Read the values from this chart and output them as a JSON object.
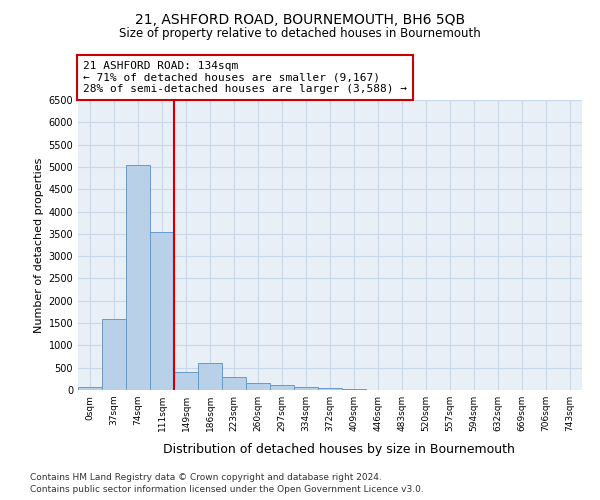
{
  "title1": "21, ASHFORD ROAD, BOURNEMOUTH, BH6 5QB",
  "title2": "Size of property relative to detached houses in Bournemouth",
  "xlabel": "Distribution of detached houses by size in Bournemouth",
  "ylabel": "Number of detached properties",
  "bins": [
    "0sqm",
    "37sqm",
    "74sqm",
    "111sqm",
    "149sqm",
    "186sqm",
    "223sqm",
    "260sqm",
    "297sqm",
    "334sqm",
    "372sqm",
    "409sqm",
    "446sqm",
    "483sqm",
    "520sqm",
    "557sqm",
    "594sqm",
    "632sqm",
    "669sqm",
    "706sqm",
    "743sqm"
  ],
  "values": [
    60,
    1600,
    5050,
    3550,
    400,
    600,
    300,
    165,
    110,
    65,
    40,
    20,
    10,
    5,
    3,
    2,
    2,
    2,
    2,
    1,
    0
  ],
  "bar_color": "#b8d0e8",
  "bar_edge_color": "#6699cc",
  "vline_color": "#cc0000",
  "annotation_text": "21 ASHFORD ROAD: 134sqm\n← 71% of detached houses are smaller (9,167)\n28% of semi-detached houses are larger (3,588) →",
  "annotation_box_color": "#cc0000",
  "ylim": [
    0,
    6500
  ],
  "yticks": [
    0,
    500,
    1000,
    1500,
    2000,
    2500,
    3000,
    3500,
    4000,
    4500,
    5000,
    5500,
    6000,
    6500
  ],
  "grid_color": "#c8d8e8",
  "footnote1": "Contains HM Land Registry data © Crown copyright and database right 2024.",
  "footnote2": "Contains public sector information licensed under the Open Government Licence v3.0.",
  "bg_color": "#e8eff6"
}
